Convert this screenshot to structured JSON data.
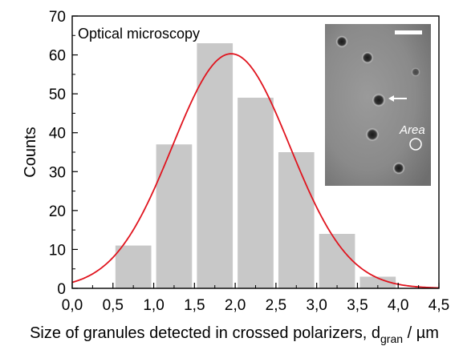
{
  "chart_data": {
    "type": "bar",
    "annotation": "Optical microscopy",
    "xlabel": "Size of granules detected in crossed polarizers, d",
    "xlabel_sub": "gran",
    "xlabel_unit": " / µm",
    "ylabel": "Counts",
    "xlim": [
      0.0,
      4.5
    ],
    "ylim": [
      0,
      70
    ],
    "x_ticks": [
      "0,0",
      "0,5",
      "1,0",
      "1,5",
      "2,0",
      "2,5",
      "3,0",
      "3,5",
      "4,0",
      "4,5"
    ],
    "x_tick_values": [
      0.0,
      0.5,
      1.0,
      1.5,
      2.0,
      2.5,
      3.0,
      3.5,
      4.0,
      4.5
    ],
    "y_ticks": [
      "0",
      "10",
      "20",
      "30",
      "40",
      "50",
      "60",
      "70"
    ],
    "y_tick_values": [
      0,
      10,
      20,
      30,
      40,
      50,
      60,
      70
    ],
    "bin_width": 0.5,
    "bars": [
      {
        "center": 0.75,
        "value": 11
      },
      {
        "center": 1.25,
        "value": 37
      },
      {
        "center": 1.75,
        "value": 63
      },
      {
        "center": 2.25,
        "value": 49
      },
      {
        "center": 2.75,
        "value": 35
      },
      {
        "center": 3.25,
        "value": 14
      },
      {
        "center": 3.75,
        "value": 3
      }
    ],
    "fit": {
      "type": "gaussian",
      "mean": 1.95,
      "sigma": 0.72,
      "amplitude": 60.3,
      "offset": 0
    },
    "colors": {
      "bar": "#c8c8c8",
      "fit": "#e0141e",
      "axis": "#000000"
    },
    "inset": {
      "label": "Area",
      "description_shown": "microscopy inset"
    }
  }
}
